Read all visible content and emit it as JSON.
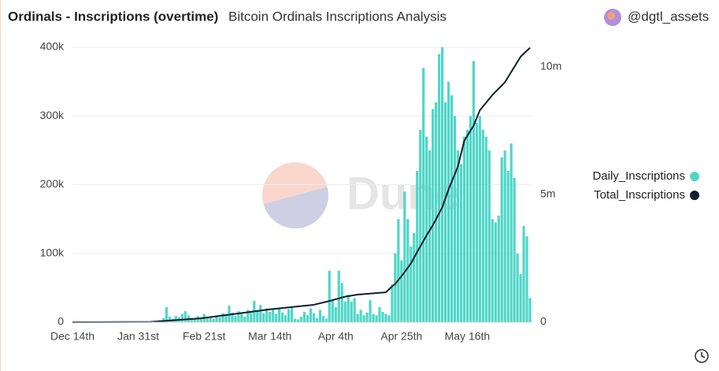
{
  "chart_data": {
    "type": "bar",
    "title": "Ordinals - Inscriptions (overtime)",
    "subtitle": "Bitcoin Ordinals Inscriptions Analysis",
    "author": "@dgtl_assets",
    "watermark": "Dune",
    "legend": "right",
    "grid": true,
    "x": [
      25,
      26,
      27,
      28,
      29,
      30,
      31,
      32,
      33,
      34,
      35,
      36,
      37,
      38,
      39,
      40,
      41,
      42,
      43,
      44,
      45,
      46,
      47,
      48,
      49,
      50,
      51,
      52,
      53,
      54,
      55,
      56,
      57,
      58,
      59,
      60,
      61,
      62,
      63,
      64,
      65,
      66,
      67,
      68,
      69,
      70,
      71,
      72,
      73,
      74,
      75,
      76,
      77,
      78,
      79,
      80,
      81,
      82,
      83,
      84,
      85,
      86,
      87,
      88,
      89,
      90,
      91,
      92,
      93,
      94,
      95,
      96,
      97,
      98,
      99,
      100,
      101,
      102,
      103,
      104,
      105,
      106,
      107,
      108,
      109,
      110,
      111,
      112,
      113,
      114,
      115,
      116,
      117,
      118,
      119,
      120,
      121,
      122,
      123,
      124,
      125,
      126,
      127,
      128,
      129,
      130,
      131,
      132,
      133,
      134,
      135,
      136,
      137,
      138,
      139,
      140,
      141,
      142,
      143,
      144,
      145,
      146
    ],
    "xlim": [
      0,
      146.5
    ],
    "xticks": [
      {
        "value": 0,
        "label": "Dec 14th"
      },
      {
        "value": 21,
        "label": "Jan 31st"
      },
      {
        "value": 42,
        "label": "Feb 21st"
      },
      {
        "value": 63,
        "label": "Mar 14th"
      },
      {
        "value": 84,
        "label": "Apr 4th"
      },
      {
        "value": 105,
        "label": "Apr 25th"
      },
      {
        "value": 126,
        "label": "May 16th"
      }
    ],
    "ylim": [
      0,
      400000
    ],
    "yticks": [
      0,
      {
        "value": 100000,
        "label": "100k"
      },
      {
        "value": 200000,
        "label": "200k"
      },
      {
        "value": 300000,
        "label": "300k"
      },
      {
        "value": 400000,
        "label": "400k"
      }
    ],
    "y2lim": [
      0,
      10770000
    ],
    "y2ticks": [
      0,
      {
        "value": 5000000,
        "label": "5m"
      },
      {
        "value": 10000000,
        "label": "10m"
      }
    ],
    "series": [
      {
        "name": "Daily_Inscriptions",
        "color": "#4fd6c8",
        "type": "bar",
        "values": [
          1000,
          1000,
          2000,
          3000,
          6000,
          22000,
          8000,
          5000,
          9000,
          7000,
          12000,
          16000,
          10000,
          6000,
          4000,
          9000,
          5000,
          12000,
          6000,
          8000,
          5000,
          10000,
          7000,
          13000,
          11000,
          24000,
          14000,
          9000,
          16000,
          12000,
          8000,
          18000,
          14000,
          31000,
          17000,
          25000,
          13000,
          20000,
          15000,
          18000,
          12000,
          20000,
          14000,
          10000,
          19000,
          22000,
          5000,
          4000,
          8000,
          15000,
          10000,
          20000,
          13000,
          6000,
          18000,
          9000,
          5000,
          75000,
          32000,
          22000,
          75000,
          57000,
          30000,
          40000,
          30000,
          35000,
          12000,
          18000,
          10000,
          14000,
          32000,
          12000,
          10000,
          22000,
          15000,
          12000,
          10000,
          55000,
          100000,
          150000,
          90000,
          190000,
          150000,
          110000,
          130000,
          220000,
          280000,
          370000,
          270000,
          250000,
          310000,
          320000,
          390000,
          400000,
          320000,
          350000,
          330000,
          300000,
          250000,
          230000,
          270000,
          280000,
          300000,
          380000,
          290000,
          300000,
          280000,
          270000,
          250000,
          150000,
          145000,
          155000,
          240000,
          250000,
          220000,
          260000,
          210000,
          100000,
          70000,
          140000,
          125000,
          35000
        ]
      },
      {
        "name": "Total_Inscriptions",
        "color": "#0d1e30",
        "type": "line",
        "axis": "y2",
        "x": [
          0,
          25,
          41,
          63,
          77,
          82,
          87,
          91,
          100,
          102,
          103,
          105,
          108,
          110,
          113,
          115,
          118,
          120,
          123,
          125,
          128,
          130,
          134,
          138,
          140,
          143,
          146
        ],
        "values": [
          0,
          10000,
          150000,
          500000,
          680000,
          830000,
          1000000,
          1080000,
          1170000,
          1400000,
          1500000,
          1800000,
          2300000,
          2750000,
          3400000,
          3800000,
          4500000,
          5200000,
          6100000,
          7100000,
          7700000,
          8300000,
          8900000,
          9400000,
          9800000,
          10400000,
          10750000
        ]
      }
    ]
  }
}
